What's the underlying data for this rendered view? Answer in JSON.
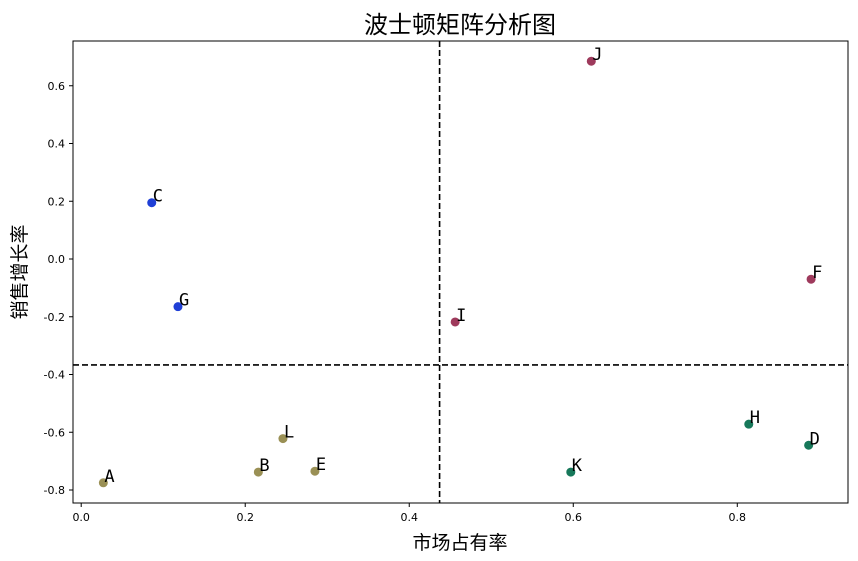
{
  "chart_data": {
    "type": "scatter",
    "title": "波士顿矩阵分析图",
    "xlabel": "市场占有率",
    "ylabel": "销售增长率",
    "xlim": [
      -0.01,
      0.935
    ],
    "ylim": [
      -0.845,
      0.755
    ],
    "xticks": [
      0.0,
      0.2,
      0.4,
      0.6,
      0.8
    ],
    "xtick_labels": [
      "0.0",
      "0.2",
      "0.4",
      "0.6",
      "0.8"
    ],
    "yticks": [
      -0.8,
      -0.6,
      -0.4,
      -0.2,
      0.0,
      0.2,
      0.4,
      0.6
    ],
    "ytick_labels": [
      "-0.8",
      "-0.6",
      "-0.4",
      "-0.2",
      "0.0",
      "0.2",
      "0.4",
      "0.6"
    ],
    "grid": false,
    "threshold_x": 0.437,
    "threshold_y": -0.367,
    "colors": {
      "question": "#9e3a5c",
      "star": "#1f3fd6",
      "dog": "#9a9055",
      "cash_cow": "#17785a"
    },
    "points": [
      {
        "label": "A",
        "x": 0.027,
        "y": -0.775,
        "group": "dog"
      },
      {
        "label": "B",
        "x": 0.216,
        "y": -0.738,
        "group": "dog"
      },
      {
        "label": "C",
        "x": 0.086,
        "y": 0.195,
        "group": "star"
      },
      {
        "label": "D",
        "x": 0.887,
        "y": -0.645,
        "group": "cash_cow"
      },
      {
        "label": "E",
        "x": 0.285,
        "y": -0.735,
        "group": "dog"
      },
      {
        "label": "F",
        "x": 0.89,
        "y": -0.07,
        "group": "question"
      },
      {
        "label": "G",
        "x": 0.118,
        "y": -0.165,
        "group": "star"
      },
      {
        "label": "H",
        "x": 0.814,
        "y": -0.572,
        "group": "cash_cow"
      },
      {
        "label": "I",
        "x": 0.456,
        "y": -0.218,
        "group": "question"
      },
      {
        "label": "J",
        "x": 0.622,
        "y": 0.685,
        "group": "question"
      },
      {
        "label": "K",
        "x": 0.597,
        "y": -0.738,
        "group": "cash_cow"
      },
      {
        "label": "L",
        "x": 0.246,
        "y": -0.622,
        "group": "dog"
      }
    ]
  }
}
